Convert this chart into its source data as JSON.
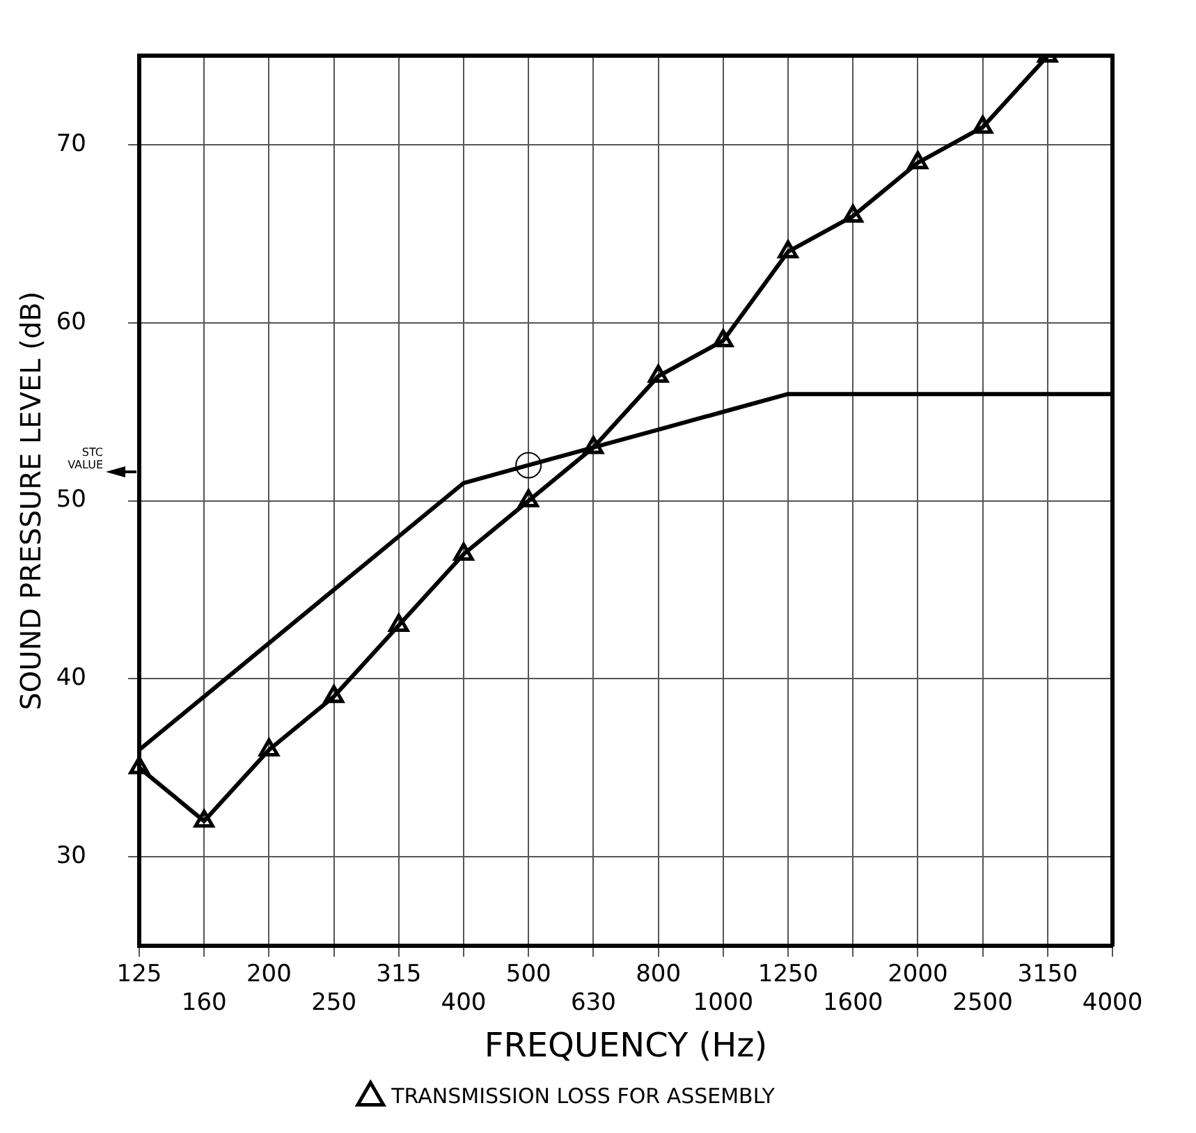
{
  "chart_data": {
    "type": "line",
    "xlabel": "FREQUENCY (Hz)",
    "ylabel": "SOUND PRESSURE LEVEL (dB)",
    "categories": [
      "125",
      "160",
      "200",
      "250",
      "315",
      "400",
      "500",
      "630",
      "800",
      "1000",
      "1250",
      "1600",
      "2000",
      "2500",
      "3150",
      "4000"
    ],
    "series": [
      {
        "name": "TRANSMISSION LOSS FOR ASSEMBLY",
        "color": "#000000",
        "marker": "triangle",
        "values": [
          35,
          32,
          36,
          39,
          43,
          47,
          50,
          53,
          57,
          59,
          64,
          66,
          69,
          71,
          75,
          null
        ]
      },
      {
        "color": "#000000",
        "marker": "none",
        "values": [
          36,
          39,
          42,
          45,
          48,
          51,
          52,
          53,
          54,
          55,
          56,
          56,
          56,
          56,
          56,
          56
        ]
      },
      {
        "type": "scatter",
        "color": "#000000",
        "marker": "circle",
        "values": [
          null,
          null,
          null,
          null,
          null,
          null,
          52,
          null,
          null,
          null,
          null,
          null,
          null,
          null,
          null,
          null
        ]
      }
    ],
    "ylim": [
      25,
      75
    ],
    "yticks": [
      30,
      40,
      50,
      60,
      70
    ],
    "annotations": [
      "STC VALUE"
    ],
    "grid": true,
    "legend": "bottom"
  }
}
